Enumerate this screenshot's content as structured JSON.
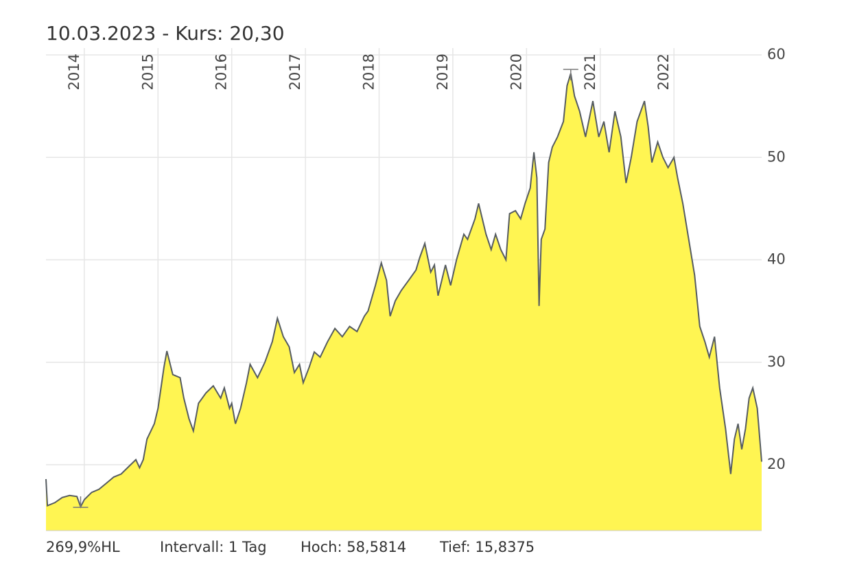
{
  "chart_data": {
    "type": "area",
    "title": "10.03.2023  -  Kurs: 20,30",
    "x": [
      2013.48,
      2013.5,
      2013.6,
      2013.7,
      2013.8,
      2013.9,
      2013.95,
      2014.0,
      2014.1,
      2014.2,
      2014.3,
      2014.4,
      2014.5,
      2014.6,
      2014.7,
      2014.75,
      2014.8,
      2014.85,
      2014.95,
      2015.0,
      2015.08,
      2015.12,
      2015.2,
      2015.3,
      2015.35,
      2015.42,
      2015.48,
      2015.55,
      2015.65,
      2015.75,
      2015.85,
      2015.9,
      2015.97,
      2016.0,
      2016.05,
      2016.12,
      2016.2,
      2016.25,
      2016.35,
      2016.45,
      2016.55,
      2016.62,
      2016.7,
      2016.78,
      2016.85,
      2016.92,
      2016.97,
      2017.05,
      2017.12,
      2017.2,
      2017.3,
      2017.4,
      2017.5,
      2017.6,
      2017.7,
      2017.8,
      2017.85,
      2017.95,
      2018.03,
      2018.1,
      2018.15,
      2018.22,
      2018.3,
      2018.4,
      2018.5,
      2018.55,
      2018.62,
      2018.7,
      2018.75,
      2018.8,
      2018.9,
      2018.97,
      2019.05,
      2019.15,
      2019.2,
      2019.3,
      2019.35,
      2019.45,
      2019.52,
      2019.58,
      2019.65,
      2019.72,
      2019.77,
      2019.85,
      2019.92,
      2019.98,
      2020.05,
      2020.1,
      2020.14,
      2020.17,
      2020.2,
      2020.25,
      2020.3,
      2020.35,
      2020.42,
      2020.5,
      2020.55,
      2020.6,
      2020.65,
      2020.72,
      2020.8,
      2020.9,
      2020.98,
      2021.05,
      2021.12,
      2021.2,
      2021.28,
      2021.35,
      2021.42,
      2021.5,
      2021.6,
      2021.65,
      2021.7,
      2021.78,
      2021.85,
      2021.92,
      2022.0,
      2022.05,
      2022.12,
      2022.2,
      2022.28,
      2022.35,
      2022.42,
      2022.48,
      2022.55,
      2022.62,
      2022.7,
      2022.77,
      2022.82,
      2022.87,
      2022.92,
      2022.97,
      2023.02,
      2023.07,
      2023.13,
      2023.19
    ],
    "values": [
      18.6,
      16.0,
      16.3,
      16.8,
      17.0,
      16.9,
      15.9,
      16.6,
      17.3,
      17.6,
      18.2,
      18.8,
      19.1,
      19.8,
      20.5,
      19.7,
      20.5,
      22.5,
      24.0,
      25.5,
      29.5,
      31.1,
      28.8,
      28.5,
      26.5,
      24.5,
      23.3,
      26.0,
      27.0,
      27.7,
      26.5,
      27.5,
      25.5,
      26.0,
      24.0,
      25.5,
      28.0,
      29.8,
      28.5,
      30.0,
      32.0,
      34.3,
      32.5,
      31.5,
      29.0,
      29.8,
      28.0,
      29.5,
      31.0,
      30.5,
      32.0,
      33.3,
      32.5,
      33.5,
      33.0,
      34.5,
      35.0,
      37.5,
      39.7,
      38.0,
      34.5,
      36.0,
      37.0,
      38.0,
      39.0,
      40.2,
      41.6,
      38.8,
      39.5,
      36.5,
      39.5,
      37.5,
      40.0,
      42.5,
      42.0,
      44.0,
      45.5,
      42.5,
      41.0,
      42.5,
      41.0,
      40.0,
      44.5,
      44.8,
      44.0,
      45.5,
      47.0,
      50.5,
      48.0,
      35.5,
      42.0,
      43.0,
      49.5,
      51.0,
      52.0,
      53.5,
      57.0,
      58.2,
      56.0,
      54.5,
      52.0,
      55.5,
      52.0,
      53.5,
      50.5,
      54.5,
      52.0,
      47.5,
      50.0,
      53.5,
      55.5,
      53.0,
      49.5,
      51.5,
      50.0,
      49.0,
      50.0,
      48.0,
      45.5,
      42.0,
      38.5,
      33.5,
      32.0,
      30.5,
      32.5,
      27.5,
      23.5,
      19.1,
      22.5,
      24.0,
      21.5,
      23.5,
      26.5,
      27.5,
      25.5,
      20.3
    ],
    "color": "#555b60",
    "fill": "#fff552",
    "xlim": [
      2013.48,
      2023.19
    ],
    "xticks": [
      2014,
      2015,
      2016,
      2017,
      2018,
      2019,
      2020,
      2021,
      2022
    ],
    "ylim": [
      13.57,
      60.67
    ],
    "yticks": [
      20,
      30,
      40,
      50,
      60
    ],
    "grid": true,
    "markers": [
      {
        "label": "Hoch: 58,5814",
        "x": 2020.6,
        "value": 58.5814
      },
      {
        "label": "Tief: 15,8375",
        "x": 2013.95,
        "value": 15.8375
      }
    ],
    "footer": [
      "269,9%HL",
      "Intervall: 1 Tag"
    ]
  }
}
